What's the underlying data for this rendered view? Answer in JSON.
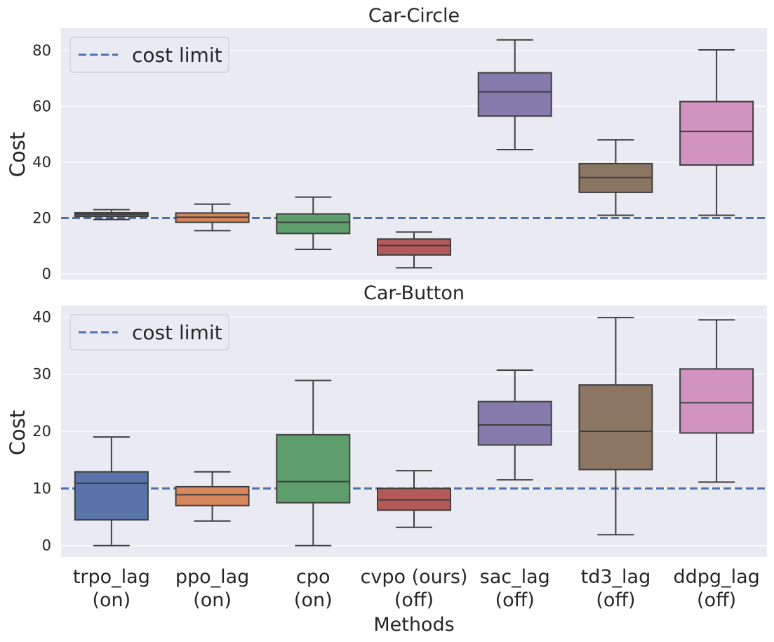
{
  "figure": {
    "xlabel": "Methods"
  },
  "chart_data": [
    {
      "type": "box",
      "title": "Car-Circle",
      "ylabel": "Cost",
      "ylim": [
        -2,
        88
      ],
      "yticks": [
        "0",
        "20",
        "40",
        "60",
        "80"
      ],
      "categories": [
        [
          "trpo_lag",
          "(on)"
        ],
        [
          "ppo_lag",
          "(on)"
        ],
        [
          "cpo",
          "(on)"
        ],
        [
          "cvpo (ours)",
          "(off)"
        ],
        [
          "sac_lag",
          "(off)"
        ],
        [
          "td3_lag",
          "(off)"
        ],
        [
          "ddpg_lag",
          "(off)"
        ]
      ],
      "boxes": [
        {
          "min": 19.5,
          "q1": 20.6,
          "median": 21.3,
          "q3": 21.9,
          "max": 23.0
        },
        {
          "min": 15.5,
          "q1": 18.5,
          "median": 20.3,
          "q3": 21.8,
          "max": 25.0
        },
        {
          "min": 8.8,
          "q1": 14.5,
          "median": 18.5,
          "q3": 21.5,
          "max": 27.5
        },
        {
          "min": 2.2,
          "q1": 6.8,
          "median": 10.2,
          "q3": 12.5,
          "max": 15.0
        },
        {
          "min": 44.5,
          "q1": 56.5,
          "median": 65.2,
          "q3": 72.0,
          "max": 83.8
        },
        {
          "min": 21.0,
          "q1": 29.2,
          "median": 34.5,
          "q3": 39.5,
          "max": 48.0
        },
        {
          "min": 21.0,
          "q1": 39.0,
          "median": 51.0,
          "q3": 61.7,
          "max": 80.2
        }
      ],
      "cost_limit": 20,
      "legend": {
        "label": "cost limit",
        "position": "top-left"
      }
    },
    {
      "type": "box",
      "title": "Car-Button",
      "ylabel": "Cost",
      "ylim": [
        -2,
        42
      ],
      "yticks": [
        "0",
        "10",
        "20",
        "30",
        "40"
      ],
      "categories": [
        [
          "trpo_lag",
          "(on)"
        ],
        [
          "ppo_lag",
          "(on)"
        ],
        [
          "cpo",
          "(on)"
        ],
        [
          "cvpo (ours)",
          "(off)"
        ],
        [
          "sac_lag",
          "(off)"
        ],
        [
          "td3_lag",
          "(off)"
        ],
        [
          "ddpg_lag",
          "(off)"
        ]
      ],
      "boxes": [
        {
          "min": 0.0,
          "q1": 4.5,
          "median": 10.9,
          "q3": 12.9,
          "max": 19.0
        },
        {
          "min": 4.3,
          "q1": 7.0,
          "median": 8.9,
          "q3": 10.3,
          "max": 12.9
        },
        {
          "min": 0.0,
          "q1": 7.5,
          "median": 11.2,
          "q3": 19.4,
          "max": 28.9
        },
        {
          "min": 3.2,
          "q1": 6.2,
          "median": 8.0,
          "q3": 10.0,
          "max": 13.1
        },
        {
          "min": 11.5,
          "q1": 17.6,
          "median": 21.1,
          "q3": 25.2,
          "max": 30.7
        },
        {
          "min": 1.9,
          "q1": 13.3,
          "median": 20.0,
          "q3": 28.1,
          "max": 39.9
        },
        {
          "min": 11.1,
          "q1": 19.7,
          "median": 25.0,
          "q3": 30.9,
          "max": 39.5
        }
      ],
      "cost_limit": 10,
      "legend": {
        "label": "cost limit",
        "position": "top-left"
      }
    }
  ],
  "colors": {
    "background": "#EAEAF2",
    "grid": "#FFFFFF",
    "whisker": "#3F3F3F",
    "cost_limit_line": "#4C72B0",
    "boxes": [
      "#5874A8",
      "#D8875C",
      "#5E9E6C",
      "#B45858",
      "#877AAD",
      "#8B7663",
      "#D193BF"
    ]
  }
}
